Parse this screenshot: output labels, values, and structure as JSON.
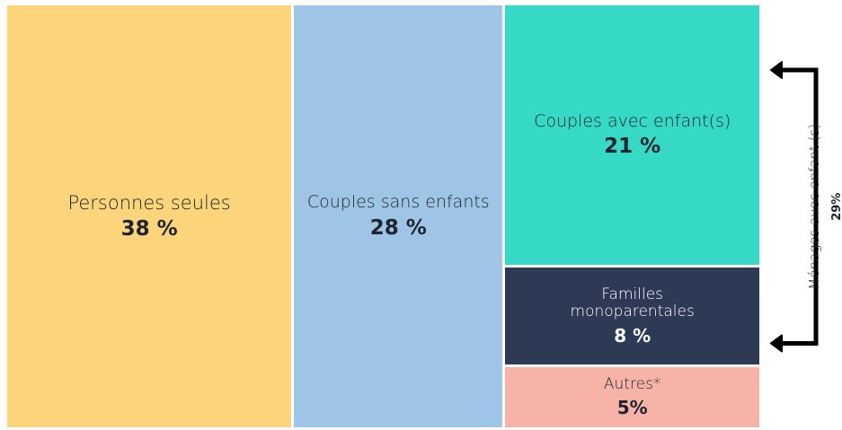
{
  "chart_data": {
    "type": "treemap",
    "categories": [
      "Personnes seules",
      "Couples sans enfants",
      "Couples avec enfant(s)",
      "Familles monoparentales",
      "Autres*"
    ],
    "values": [
      38,
      28,
      21,
      8,
      5
    ],
    "value_labels": [
      "38 %",
      "28 %",
      "21 %",
      "8 %",
      "5%"
    ],
    "colors": [
      "#fcd57a",
      "#9fc5e6",
      "#35d9c5",
      "#2e3a55",
      "#f7b3a8"
    ],
    "annotation": {
      "text": "Ménages avec enfant (s)",
      "value": 29,
      "value_label": "29%"
    }
  }
}
